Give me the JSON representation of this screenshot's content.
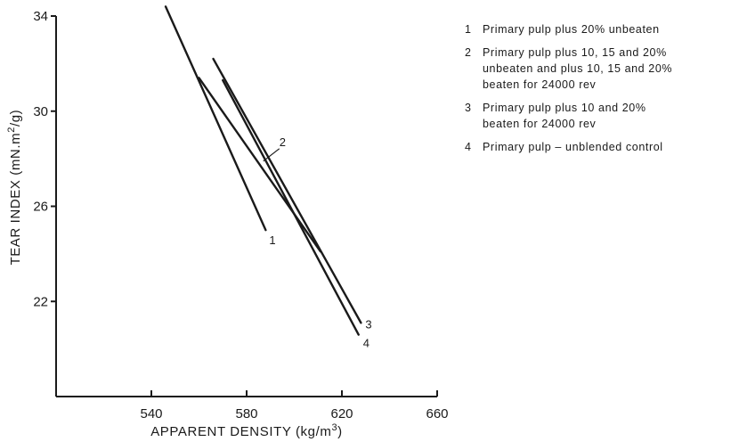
{
  "chart_data": {
    "type": "line",
    "title": "",
    "xlabel": "APPARENT DENSITY (kg/m",
    "xlabel_sup": "3",
    "xlabel_close": ")",
    "ylabel": "TEAR INDEX (mN.m",
    "ylabel_sup": "2",
    "ylabel_close": "/g)",
    "xlim": [
      500,
      660
    ],
    "ylim": [
      18,
      34
    ],
    "x_ticks": [
      540,
      580,
      620,
      660
    ],
    "x_tick_labels": [
      "540",
      "580",
      "620",
      "660"
    ],
    "y_ticks": [
      22,
      26,
      30,
      34
    ],
    "y_tick_labels": [
      "22",
      "26",
      "30",
      "34"
    ],
    "grid": false,
    "legend_position": "top-right",
    "series": [
      {
        "key": "1",
        "label": "1",
        "points": [
          [
            546,
            34.4
          ],
          [
            588,
            25.0
          ]
        ]
      },
      {
        "key": "2",
        "label": "2",
        "points": [
          [
            560,
            31.4
          ],
          [
            611,
            24.1
          ]
        ]
      },
      {
        "key": "3",
        "label": "3",
        "points": [
          [
            566,
            32.2
          ],
          [
            628,
            21.1
          ]
        ]
      },
      {
        "key": "4",
        "label": "4",
        "points": [
          [
            570,
            31.3
          ],
          [
            627,
            20.6
          ]
        ]
      }
    ]
  },
  "legend": {
    "items": [
      {
        "key": "1",
        "lines": [
          "Primary pulp plus 20% unbeaten"
        ]
      },
      {
        "key": "2",
        "lines": [
          "Primary pulp plus 10, 15 and 20%",
          "unbeaten and plus 10, 15 and 20%",
          "beaten for 24000 rev"
        ]
      },
      {
        "key": "3",
        "lines": [
          "Primary pulp plus 10 and 20%",
          "beaten for 24000 rev"
        ]
      },
      {
        "key": "4",
        "lines": [
          "Primary pulp – unblended control"
        ]
      }
    ]
  }
}
